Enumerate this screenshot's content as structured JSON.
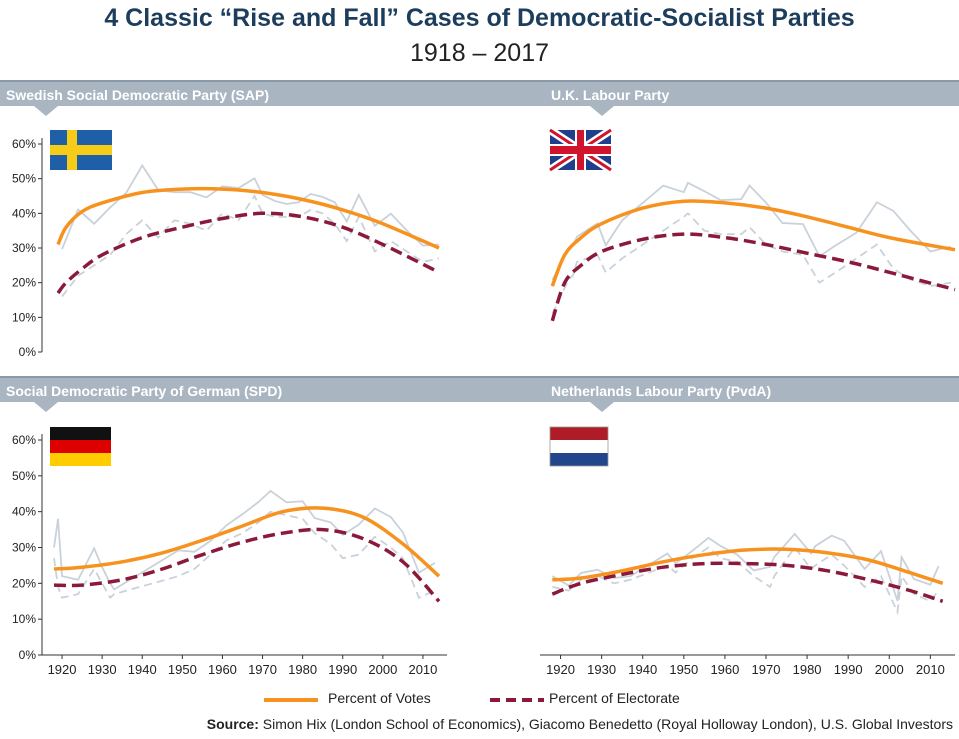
{
  "title": "4 Classic “Rise and Fall” Cases of Democratic-Socialist Parties",
  "subtitle": "1918 – 2017",
  "legend": {
    "votes": "Percent of Votes",
    "electorate": "Percent of Electorate"
  },
  "source": {
    "label": "Source:",
    "text": "Simon Hix (London School of Economics), Giacomo Benedetto (Royal Holloway London), U.S. Global Investors"
  },
  "colors": {
    "votes": "#f7921e",
    "electorate": "#8b1a3a",
    "raw": "#c9d1da",
    "band": "#a9b6c2",
    "title": "#1c3d5c"
  },
  "chart_data": [
    {
      "type": "line",
      "title": "Swedish Social Democratic Party (SAP)",
      "flag": "sweden-flag",
      "ylim": [
        0,
        60
      ],
      "yticks": [
        "0%",
        "10%",
        "20%",
        "30%",
        "40%",
        "50%",
        "60%"
      ],
      "xlim": [
        1915,
        2016
      ],
      "series": [
        {
          "name": "Percent of Votes",
          "x": [
            1919,
            1921,
            1925,
            1930,
            1940,
            1950,
            1960,
            1970,
            1980,
            1990,
            2000,
            2014
          ],
          "values": [
            31,
            36,
            40.5,
            43,
            46,
            47,
            47,
            46,
            44,
            41,
            37,
            30
          ]
        },
        {
          "name": "Percent of Electorate",
          "x": [
            1919,
            1921,
            1925,
            1930,
            1940,
            1950,
            1960,
            1970,
            1980,
            1990,
            2000,
            2014
          ],
          "values": [
            17,
            20,
            24,
            28,
            33,
            36,
            38.5,
            40,
            39,
            36,
            31,
            23
          ]
        },
        {
          "name": "Votes (raw)",
          "x": [
            1920,
            1924,
            1928,
            1932,
            1936,
            1940,
            1944,
            1948,
            1952,
            1956,
            1960,
            1964,
            1968,
            1970,
            1973,
            1976,
            1979,
            1982,
            1985,
            1988,
            1991,
            1994,
            1998,
            2002,
            2006,
            2010,
            2014
          ],
          "values": [
            29.7,
            41.1,
            37,
            41.7,
            45.9,
            53.8,
            46.7,
            46.1,
            46.1,
            44.6,
            47.8,
            47.3,
            50.1,
            45.3,
            43.6,
            42.7,
            43.2,
            45.6,
            44.7,
            43.2,
            37.7,
            45.3,
            36.4,
            39.9,
            35,
            30.7,
            31
          ]
        },
        {
          "name": "Electorate (raw)",
          "x": [
            1920,
            1924,
            1928,
            1932,
            1936,
            1940,
            1944,
            1948,
            1952,
            1956,
            1960,
            1964,
            1968,
            1970,
            1973,
            1976,
            1979,
            1982,
            1985,
            1988,
            1991,
            1994,
            1998,
            2002,
            2006,
            2010,
            2014
          ],
          "values": [
            16,
            22,
            25,
            28,
            34,
            38,
            33,
            38,
            37,
            35,
            40,
            38,
            45,
            40,
            39,
            39,
            39,
            41,
            40,
            37,
            32,
            39,
            29,
            32,
            29,
            26,
            27
          ]
        }
      ]
    },
    {
      "type": "line",
      "title": "U.K. Labour Party",
      "flag": "uk-flag",
      "ylim": [
        0,
        60
      ],
      "xlim": [
        1915,
        2016
      ],
      "series": [
        {
          "name": "Percent of Votes",
          "x": [
            1918,
            1921,
            1925,
            1930,
            1940,
            1950,
            1960,
            1970,
            1980,
            1990,
            2000,
            2016
          ],
          "values": [
            19,
            28,
            33,
            37,
            41.5,
            43.5,
            43,
            41.5,
            39,
            36,
            33,
            29.5
          ]
        },
        {
          "name": "Percent of Electorate",
          "x": [
            1918,
            1921,
            1925,
            1930,
            1940,
            1950,
            1960,
            1970,
            1980,
            1990,
            2000,
            2016
          ],
          "values": [
            9,
            20,
            25,
            29,
            32.5,
            34,
            33,
            31,
            28.5,
            26,
            23,
            18
          ]
        },
        {
          "name": "Votes (raw)",
          "x": [
            1918,
            1922,
            1923,
            1924,
            1929,
            1931,
            1935,
            1945,
            1950,
            1951,
            1955,
            1959,
            1964,
            1966,
            1970,
            1974,
            1979,
            1983,
            1987,
            1992,
            1997,
            2001,
            2005,
            2010,
            2015
          ],
          "values": [
            20.8,
            29.7,
            30.7,
            33.3,
            37.1,
            30.8,
            38,
            48,
            46.1,
            48.8,
            46.4,
            43.8,
            44.1,
            48,
            43.1,
            37.2,
            36.9,
            27.6,
            30.8,
            34.4,
            43.2,
            40.7,
            35.2,
            29,
            30.4
          ]
        },
        {
          "name": "Electorate (raw)",
          "x": [
            1918,
            1922,
            1923,
            1924,
            1929,
            1931,
            1935,
            1945,
            1950,
            1951,
            1955,
            1959,
            1964,
            1966,
            1970,
            1974,
            1979,
            1983,
            1987,
            1992,
            1997,
            2001,
            2005,
            2010,
            2015
          ],
          "values": [
            11,
            21,
            22,
            26,
            28,
            23,
            27,
            35,
            39,
            40,
            35,
            34,
            34,
            36,
            31,
            29,
            28,
            20,
            23,
            27,
            31,
            24,
            21,
            19,
            20
          ]
        }
      ]
    },
    {
      "type": "line",
      "title": "Social Democratic Party of German (SPD)",
      "flag": "germany-flag",
      "ylim": [
        0,
        60
      ],
      "yticks": [
        "0%",
        "10%",
        "20%",
        "30%",
        "40%",
        "50%",
        "60%"
      ],
      "xticks": [
        "1920",
        "1930",
        "1940",
        "1950",
        "1960",
        "1970",
        "1980",
        "1990",
        "2000",
        "2010"
      ],
      "xlim": [
        1915,
        2016
      ],
      "series": [
        {
          "name": "Percent of Votes",
          "x": [
            1918,
            1925,
            1935,
            1945,
            1955,
            1965,
            1975,
            1985,
            1995,
            2005,
            2014
          ],
          "values": [
            24,
            24.5,
            26,
            28.5,
            32,
            36,
            40,
            41,
            38.5,
            31,
            22
          ]
        },
        {
          "name": "Percent of Electorate",
          "x": [
            1918,
            1925,
            1935,
            1945,
            1955,
            1965,
            1975,
            1985,
            1995,
            2005,
            2014
          ],
          "values": [
            19.5,
            19.5,
            21,
            24,
            28,
            31.5,
            34,
            35,
            32.5,
            26,
            15
          ]
        },
        {
          "name": "Votes (raw)",
          "x": [
            1918,
            1919,
            1920,
            1924,
            1928,
            1930,
            1932,
            1933,
            1949,
            1953,
            1957,
            1961,
            1965,
            1969,
            1972,
            1976,
            1980,
            1983,
            1987,
            1990,
            1994,
            1998,
            2002,
            2005,
            2009,
            2013
          ],
          "values": [
            30,
            38,
            22,
            21,
            29.8,
            24.5,
            20,
            18.3,
            29.2,
            28.8,
            31.8,
            36.2,
            39.3,
            42.7,
            45.8,
            42.6,
            42.9,
            38.2,
            37,
            33.5,
            36.4,
            40.9,
            38.5,
            34.2,
            23,
            25.7
          ]
        },
        {
          "name": "Electorate (raw)",
          "x": [
            1918,
            1919,
            1920,
            1924,
            1928,
            1930,
            1932,
            1933,
            1949,
            1953,
            1957,
            1961,
            1965,
            1969,
            1972,
            1976,
            1980,
            1983,
            1987,
            1990,
            1994,
            1998,
            2002,
            2005,
            2009,
            2013
          ],
          "values": [
            27,
            19,
            16,
            17,
            24,
            20,
            16,
            17,
            22,
            24,
            28,
            32,
            34,
            37,
            40,
            39,
            38,
            34,
            31,
            27,
            28,
            33,
            30,
            27,
            16,
            18
          ]
        }
      ]
    },
    {
      "type": "line",
      "title": "Netherlands Labour Party (PvdA)",
      "flag": "netherlands-flag",
      "ylim": [
        0,
        60
      ],
      "xticks": [
        "1920",
        "1930",
        "1940",
        "1950",
        "1960",
        "1970",
        "1980",
        "1990",
        "2000",
        "2010"
      ],
      "xlim": [
        1915,
        2016
      ],
      "series": [
        {
          "name": "Percent of Votes",
          "x": [
            1918,
            1925,
            1935,
            1945,
            1955,
            1965,
            1975,
            1985,
            1995,
            2005,
            2013
          ],
          "values": [
            21,
            21.5,
            23.5,
            26,
            28,
            29.3,
            29.5,
            28.5,
            26.5,
            23,
            20
          ]
        },
        {
          "name": "Percent of Electorate",
          "x": [
            1918,
            1925,
            1935,
            1945,
            1955,
            1965,
            1975,
            1985,
            1995,
            2005,
            2013
          ],
          "values": [
            17,
            20,
            22.5,
            24.5,
            25.5,
            25.5,
            25,
            23.5,
            21,
            18,
            15
          ]
        },
        {
          "name": "Votes (raw)",
          "x": [
            1918,
            1922,
            1925,
            1929,
            1933,
            1937,
            1946,
            1948,
            1952,
            1956,
            1959,
            1963,
            1967,
            1971,
            1972,
            1977,
            1981,
            1982,
            1986,
            1989,
            1994,
            1998,
            2002,
            2003,
            2006,
            2010,
            2012
          ],
          "values": [
            22,
            19.4,
            22.9,
            23.8,
            21.5,
            22,
            28.3,
            25.6,
            29,
            32.7,
            30.4,
            28,
            23.6,
            24.6,
            27.3,
            33.8,
            28.3,
            30.4,
            33.3,
            31.9,
            24,
            29,
            15.1,
            27.3,
            21.2,
            19.6,
            24.8
          ]
        },
        {
          "name": "Electorate (raw)",
          "x": [
            1918,
            1922,
            1925,
            1929,
            1933,
            1937,
            1946,
            1948,
            1952,
            1956,
            1959,
            1963,
            1967,
            1971,
            1972,
            1977,
            1981,
            1982,
            1986,
            1989,
            1994,
            1998,
            2002,
            2003,
            2006,
            2010,
            2012
          ],
          "values": [
            19,
            18,
            21,
            22,
            20,
            21,
            25,
            23,
            27,
            30,
            27,
            26,
            22,
            19,
            22,
            30,
            24,
            25,
            28,
            25,
            19,
            22,
            12,
            22,
            17,
            15,
            18
          ]
        }
      ]
    }
  ]
}
